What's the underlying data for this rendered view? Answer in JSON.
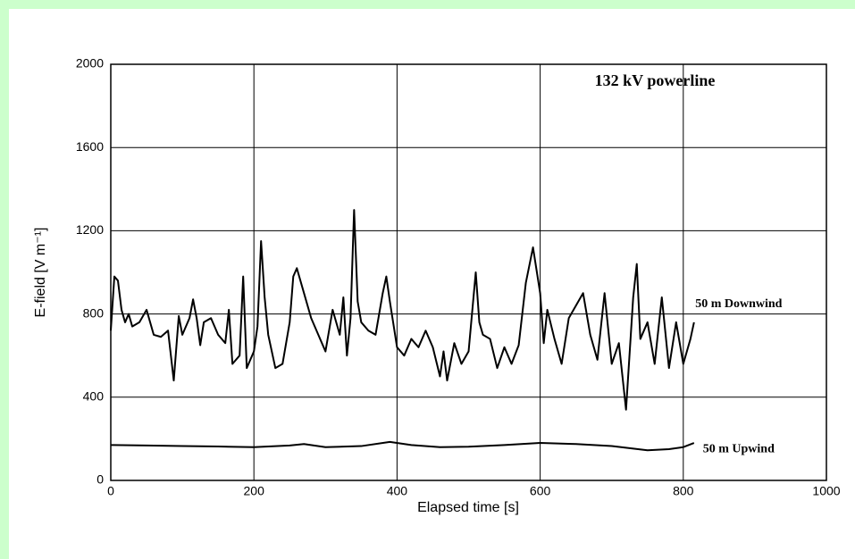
{
  "chart_data": {
    "type": "line",
    "title": "132 kV powerline",
    "xlabel": "Elapsed time [s]",
    "ylabel": "E-field [V m⁻¹]",
    "xlim": [
      0,
      1000
    ],
    "xticks": [
      0,
      200,
      400,
      600,
      800,
      1000
    ],
    "ylim": [
      0,
      2000
    ],
    "yticks": [
      0,
      400,
      800,
      1200,
      1600,
      2000
    ],
    "grid": true,
    "series": [
      {
        "name": "50 m Downwind",
        "color": "#000000",
        "x": [
          0,
          5,
          10,
          15,
          20,
          25,
          30,
          40,
          50,
          60,
          70,
          80,
          88,
          95,
          100,
          110,
          115,
          120,
          125,
          130,
          140,
          150,
          160,
          165,
          170,
          180,
          185,
          190,
          200,
          205,
          210,
          215,
          220,
          230,
          240,
          250,
          255,
          260,
          270,
          280,
          290,
          300,
          310,
          320,
          325,
          330,
          335,
          340,
          345,
          350,
          360,
          370,
          380,
          385,
          390,
          400,
          410,
          420,
          430,
          440,
          450,
          460,
          465,
          470,
          480,
          490,
          500,
          510,
          515,
          520,
          530,
          540,
          550,
          560,
          570,
          580,
          590,
          600,
          605,
          610,
          620,
          630,
          640,
          650,
          660,
          670,
          680,
          690,
          700,
          710,
          720,
          730,
          735,
          740,
          750,
          760,
          770,
          780,
          790,
          800,
          810,
          815
        ],
        "values": [
          720,
          980,
          960,
          820,
          760,
          800,
          740,
          760,
          820,
          700,
          690,
          720,
          480,
          790,
          700,
          780,
          870,
          780,
          650,
          760,
          780,
          700,
          660,
          820,
          560,
          600,
          980,
          540,
          620,
          740,
          1150,
          880,
          700,
          540,
          560,
          760,
          980,
          1020,
          900,
          780,
          700,
          620,
          820,
          700,
          880,
          600,
          780,
          1300,
          860,
          760,
          720,
          700,
          900,
          980,
          860,
          640,
          600,
          680,
          640,
          720,
          640,
          500,
          620,
          480,
          660,
          560,
          620,
          1000,
          760,
          700,
          680,
          540,
          640,
          560,
          650,
          950,
          1120,
          900,
          660,
          820,
          680,
          560,
          780,
          840,
          900,
          700,
          580,
          900,
          560,
          660,
          340,
          880,
          1040,
          680,
          760,
          560,
          880,
          540,
          760,
          560,
          680,
          760
        ]
      },
      {
        "name": "50 m Upwind",
        "color": "#000000",
        "x": [
          0,
          50,
          100,
          150,
          200,
          250,
          270,
          300,
          350,
          390,
          420,
          460,
          500,
          550,
          600,
          650,
          700,
          750,
          780,
          800,
          815
        ],
        "values": [
          170,
          168,
          165,
          163,
          160,
          168,
          175,
          160,
          165,
          185,
          170,
          160,
          162,
          170,
          180,
          175,
          165,
          145,
          150,
          160,
          180
        ]
      }
    ]
  }
}
